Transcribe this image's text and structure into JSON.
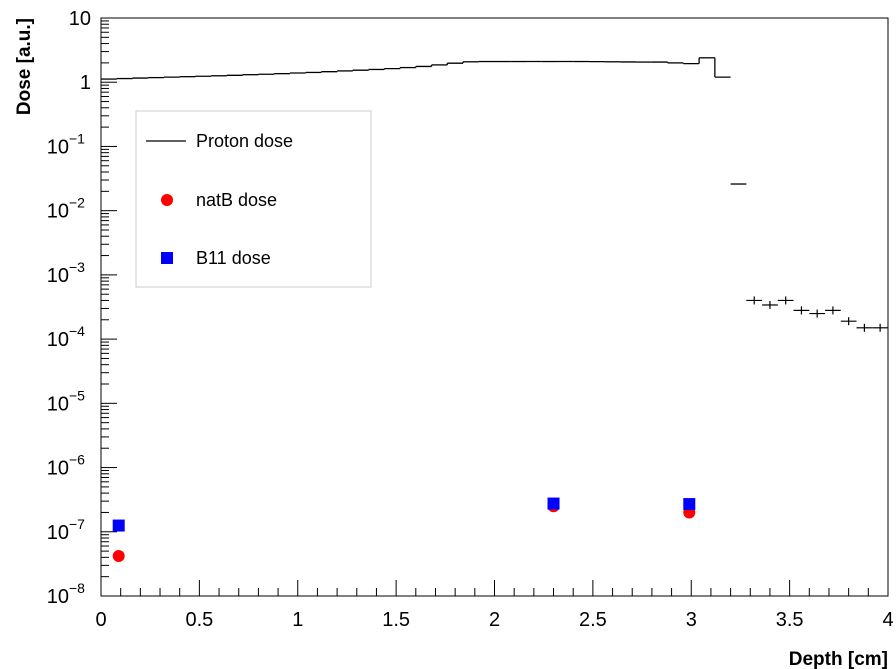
{
  "chart_data": {
    "type": "scatter",
    "xlabel": "Depth [cm]",
    "ylabel": "Dose [a.u.]",
    "xlim": [
      0,
      4
    ],
    "ylim": [
      1e-08,
      10
    ],
    "yscale": "log",
    "x_ticks": [
      {
        "value": 0,
        "label": "0"
      },
      {
        "value": 0.5,
        "label": "0.5"
      },
      {
        "value": 1,
        "label": "1"
      },
      {
        "value": 1.5,
        "label": "1.5"
      },
      {
        "value": 2,
        "label": "2"
      },
      {
        "value": 2.5,
        "label": "2.5"
      },
      {
        "value": 3,
        "label": "3"
      },
      {
        "value": 3.5,
        "label": "3.5"
      },
      {
        "value": 4,
        "label": "4"
      }
    ],
    "y_ticks": [
      {
        "exp": -8,
        "base": "10",
        "sup": "−8"
      },
      {
        "exp": -7,
        "base": "10",
        "sup": "−7"
      },
      {
        "exp": -6,
        "base": "10",
        "sup": "−6"
      },
      {
        "exp": -5,
        "base": "10",
        "sup": "−5"
      },
      {
        "exp": -4,
        "base": "10",
        "sup": "−4"
      },
      {
        "exp": -3,
        "base": "10",
        "sup": "−3"
      },
      {
        "exp": -2,
        "base": "10",
        "sup": "−2"
      },
      {
        "exp": -1,
        "base": "10",
        "sup": "−1"
      },
      {
        "exp": 0,
        "base": "1",
        "sup": ""
      },
      {
        "exp": 1,
        "base": "10",
        "sup": ""
      }
    ],
    "grid": false,
    "legend_position": "upper-left",
    "series": [
      {
        "name": "Proton dose",
        "style": "step",
        "color": "#000000",
        "bin_width": 0.08,
        "x": [
          0.04,
          0.12,
          0.2,
          0.28,
          0.36,
          0.44,
          0.52,
          0.6,
          0.68,
          0.76,
          0.84,
          0.92,
          1.0,
          1.08,
          1.16,
          1.24,
          1.32,
          1.4,
          1.48,
          1.56,
          1.64,
          1.72,
          1.8,
          1.88,
          1.96,
          2.04,
          2.12,
          2.2,
          2.28,
          2.36,
          2.44,
          2.52,
          2.6,
          2.68,
          2.76,
          2.84,
          2.92,
          3.0,
          3.08,
          3.16,
          3.24,
          3.32,
          3.4,
          3.48,
          3.56,
          3.64,
          3.72,
          3.8,
          3.88,
          3.96
        ],
        "y": [
          1.12,
          1.14,
          1.16,
          1.18,
          1.2,
          1.22,
          1.24,
          1.26,
          1.28,
          1.31,
          1.33,
          1.36,
          1.39,
          1.42,
          1.46,
          1.5,
          1.54,
          1.58,
          1.63,
          1.69,
          1.76,
          1.86,
          1.98,
          2.08,
          2.1,
          2.1,
          2.1,
          2.1,
          2.1,
          2.1,
          2.1,
          2.09,
          2.08,
          2.07,
          2.06,
          2.06,
          2.0,
          1.95,
          2.4,
          1.2,
          0.026,
          0.0004,
          0.00034,
          0.0004,
          0.00028,
          0.00025,
          0.00028,
          0.00019,
          0.00015,
          0.00015
        ]
      },
      {
        "name": "natB dose",
        "style": "circle",
        "color": "#ff0000",
        "x": [
          0.09,
          2.3,
          2.99
        ],
        "y": [
          4.2e-08,
          2.5e-07,
          2e-07
        ]
      },
      {
        "name": "B11 dose",
        "style": "square",
        "color": "#0000ff",
        "x": [
          0.09,
          2.3,
          2.99
        ],
        "y": [
          1.25e-07,
          2.75e-07,
          2.7e-07
        ]
      }
    ]
  }
}
